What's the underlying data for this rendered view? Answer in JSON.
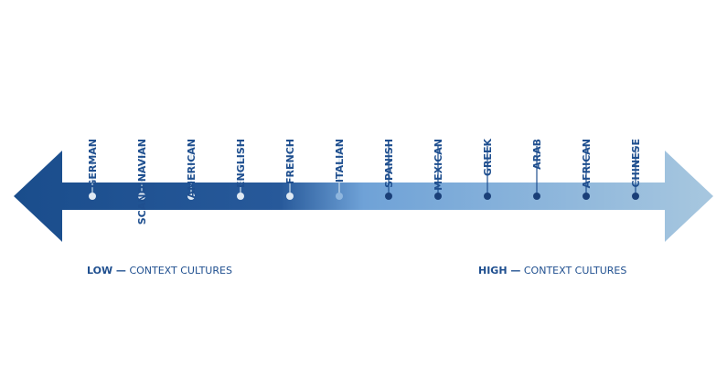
{
  "cultures": [
    "GERMAN",
    "SCANDINAVIAN",
    "AMERICAN",
    "ENGLISH",
    "FRENCH",
    "ITALIAN",
    "SPANISH",
    "MEXICAN",
    "GREEK",
    "ARAB",
    "AFRICAN",
    "CHINESE"
  ],
  "low": {
    "emphasis": "LOW —",
    "text": "CONTEXT CULTURES"
  },
  "high": {
    "emphasis": "HIGH —",
    "text": "CONTEXT CULTURES"
  }
}
